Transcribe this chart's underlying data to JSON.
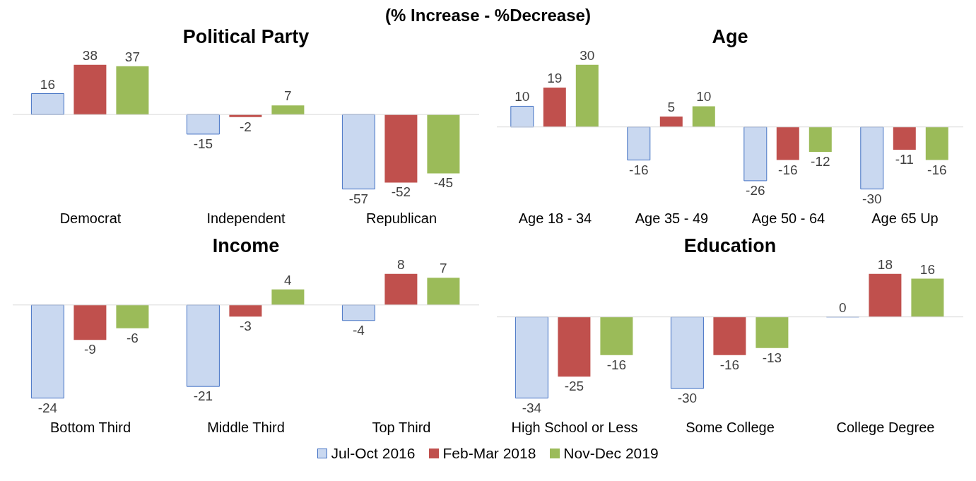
{
  "chart_data": [
    {
      "type": "bar",
      "title": "Political Party",
      "annotations": [
        "(% Increase - %Decrease)"
      ],
      "categories": [
        "Democrat",
        "Independent",
        "Republican"
      ],
      "data_labels": true,
      "legend": "bottom",
      "series": [
        {
          "name": "Jul-Oct 2016",
          "color": "#c9d8f0",
          "values": [
            16,
            -15,
            -57
          ]
        },
        {
          "name": "Feb-Mar 2018",
          "color": "#c0504d",
          "values": [
            38,
            -2,
            -52
          ]
        },
        {
          "name": "Nov-Dec 2019",
          "color": "#9bbb59",
          "values": [
            37,
            7,
            -45
          ]
        }
      ]
    },
    {
      "type": "bar",
      "title": "Age",
      "categories": [
        "Age 18 - 34",
        "Age 35 - 49",
        "Age 50 - 64",
        "Age 65 Up"
      ],
      "data_labels": true,
      "series": [
        {
          "color": "#c9d8f0",
          "values": [
            10,
            -16,
            -26,
            -30
          ]
        },
        {
          "color": "#c0504d",
          "values": [
            19,
            5,
            -16,
            -11
          ]
        },
        {
          "color": "#9bbb59",
          "values": [
            30,
            10,
            -12,
            -16
          ]
        }
      ]
    },
    {
      "type": "bar",
      "title": "Income",
      "categories": [
        "Bottom Third",
        "Middle Third",
        "Top Third"
      ],
      "data_labels": true,
      "series": [
        {
          "color": "#c9d8f0",
          "values": [
            -24,
            -21,
            -4
          ]
        },
        {
          "color": "#c0504d",
          "values": [
            -9,
            -3,
            8
          ]
        },
        {
          "color": "#9bbb59",
          "values": [
            -6,
            4,
            7
          ]
        }
      ]
    },
    {
      "type": "bar",
      "title": "Education",
      "categories": [
        "High School or Less",
        "Some College",
        "College Degree"
      ],
      "data_labels": true,
      "series": [
        {
          "color": "#c9d8f0",
          "values": [
            -34,
            -30,
            0
          ]
        },
        {
          "color": "#c0504d",
          "values": [
            -25,
            -16,
            18
          ]
        },
        {
          "color": "#9bbb59",
          "values": [
            -16,
            -13,
            16
          ]
        }
      ]
    }
  ]
}
